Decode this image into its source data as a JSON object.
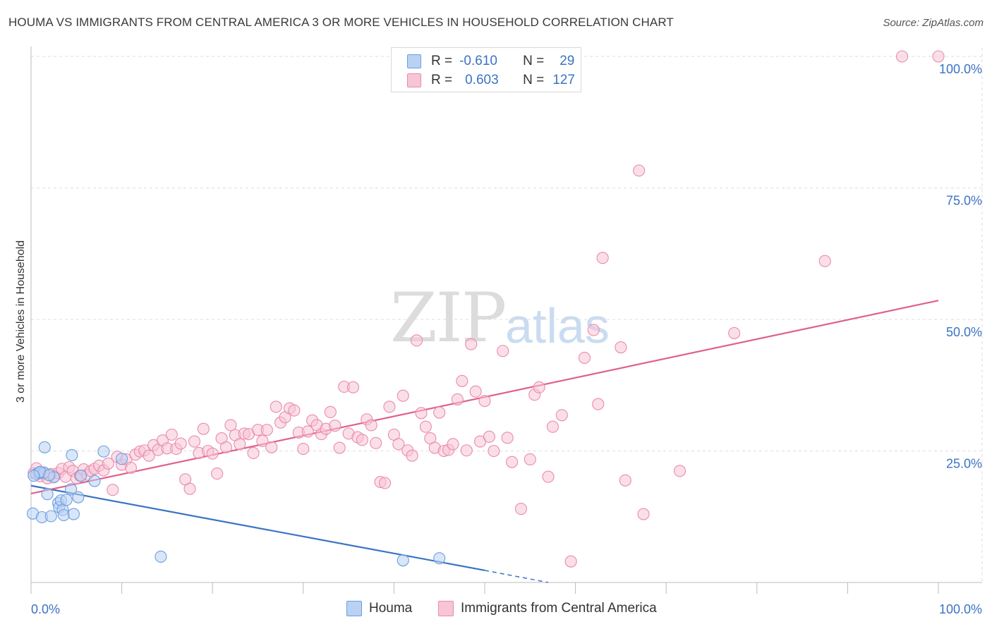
{
  "title": "HOUMA VS IMMIGRANTS FROM CENTRAL AMERICA 3 OR MORE VEHICLES IN HOUSEHOLD CORRELATION CHART",
  "source": "Source: ZipAtlas.com",
  "watermark": {
    "zip": "ZIP",
    "atlas": "atlas"
  },
  "colors": {
    "houma": "#6d9ee0",
    "houma_fill": "#b9d1f2",
    "central": "#e98bab",
    "central_fill": "#f7c5d6",
    "houma_line": "#3b73c4",
    "central_line": "#e0608e",
    "axis_text": "#3b73c4",
    "grid": "#dddddd"
  },
  "legend_top": [
    {
      "r_label": "R =",
      "r_value": "-0.610",
      "n_label": "N =",
      "n_value": "29"
    },
    {
      "r_label": "R =",
      "r_value": "0.603",
      "n_label": "N =",
      "n_value": "127"
    }
  ],
  "legend_bottom": [
    "Houma",
    "Immigrants from Central America"
  ],
  "chart_data": {
    "type": "scatter",
    "title": "HOUMA VS IMMIGRANTS FROM CENTRAL AMERICA 3 OR MORE VEHICLES IN HOUSEHOLD CORRELATION CHART",
    "xlabel": "",
    "ylabel": "3 or more Vehicles in Household",
    "xlim": [
      0,
      100
    ],
    "ylim": [
      0,
      100
    ],
    "x_tick_labels": [
      "0.0%",
      "100.0%"
    ],
    "y_tick_values": [
      25,
      50,
      75,
      100
    ],
    "y_tick_labels": [
      "25.0%",
      "50.0%",
      "75.0%",
      "100.0%"
    ],
    "grid": true,
    "series": [
      {
        "name": "Houma",
        "r": -0.61,
        "n": 29,
        "trend": {
          "x": [
            0,
            50
          ],
          "y": [
            18.4,
            2.3
          ],
          "dashed_to": [
            57,
            0
          ]
        },
        "points": [
          [
            0.2,
            13.1
          ],
          [
            0.6,
            20.6
          ],
          [
            0.9,
            20.8
          ],
          [
            1.2,
            12.4
          ],
          [
            1.4,
            20.9
          ],
          [
            1.5,
            25.7
          ],
          [
            1.8,
            16.8
          ],
          [
            2.2,
            12.6
          ],
          [
            2.5,
            20.0
          ],
          [
            3.0,
            15.1
          ],
          [
            3.1,
            14.3
          ],
          [
            3.3,
            15.6
          ],
          [
            3.5,
            13.8
          ],
          [
            3.6,
            12.8
          ],
          [
            3.9,
            15.7
          ],
          [
            4.4,
            17.7
          ],
          [
            4.5,
            24.2
          ],
          [
            4.7,
            13.0
          ],
          [
            5.2,
            16.2
          ],
          [
            5.5,
            20.3
          ],
          [
            7.0,
            19.3
          ],
          [
            8.0,
            24.9
          ],
          [
            10.0,
            23.5
          ],
          [
            14.3,
            4.9
          ],
          [
            41.0,
            4.2
          ],
          [
            45.0,
            4.6
          ],
          [
            1.0,
            21.0
          ],
          [
            2.0,
            20.4
          ],
          [
            0.3,
            20.3
          ]
        ]
      },
      {
        "name": "Immigrants from Central America",
        "r": 0.603,
        "n": 127,
        "trend": {
          "x": [
            0,
            100
          ],
          "y": [
            16.9,
            53.6
          ]
        },
        "points": [
          [
            0.3,
            20.8
          ],
          [
            0.6,
            21.7
          ],
          [
            1.0,
            20.2
          ],
          [
            1.4,
            20.7
          ],
          [
            1.8,
            19.8
          ],
          [
            2.2,
            20.6
          ],
          [
            2.6,
            20.2
          ],
          [
            3.0,
            20.8
          ],
          [
            3.4,
            21.6
          ],
          [
            3.8,
            20.1
          ],
          [
            4.2,
            21.9
          ],
          [
            4.6,
            21.2
          ],
          [
            5.0,
            19.8
          ],
          [
            5.4,
            20.3
          ],
          [
            5.8,
            21.5
          ],
          [
            6.2,
            20.5
          ],
          [
            6.6,
            21.2
          ],
          [
            7.0,
            21.6
          ],
          [
            7.5,
            22.2
          ],
          [
            8.0,
            21.3
          ],
          [
            8.5,
            22.6
          ],
          [
            9.0,
            17.6
          ],
          [
            9.5,
            23.9
          ],
          [
            10.0,
            22.4
          ],
          [
            10.5,
            23.4
          ],
          [
            11.0,
            21.8
          ],
          [
            11.5,
            24.3
          ],
          [
            12.0,
            24.9
          ],
          [
            12.5,
            25.1
          ],
          [
            13.0,
            24.1
          ],
          [
            13.5,
            26.1
          ],
          [
            14.0,
            25.2
          ],
          [
            14.5,
            27.0
          ],
          [
            15.0,
            25.5
          ],
          [
            15.5,
            28.1
          ],
          [
            16.0,
            25.4
          ],
          [
            16.5,
            26.4
          ],
          [
            17.0,
            19.6
          ],
          [
            17.5,
            17.8
          ],
          [
            18.0,
            26.8
          ],
          [
            18.5,
            24.6
          ],
          [
            19.0,
            29.2
          ],
          [
            19.5,
            25.0
          ],
          [
            20.0,
            24.5
          ],
          [
            20.5,
            20.7
          ],
          [
            21.0,
            27.4
          ],
          [
            21.5,
            25.7
          ],
          [
            22.0,
            29.9
          ],
          [
            22.5,
            28.0
          ],
          [
            23.0,
            26.3
          ],
          [
            23.5,
            28.3
          ],
          [
            24.0,
            28.2
          ],
          [
            24.5,
            24.6
          ],
          [
            25.0,
            29.0
          ],
          [
            25.5,
            26.9
          ],
          [
            26.0,
            29.0
          ],
          [
            26.5,
            25.7
          ],
          [
            27.0,
            33.4
          ],
          [
            27.5,
            30.4
          ],
          [
            28.0,
            31.4
          ],
          [
            28.5,
            33.1
          ],
          [
            29.0,
            32.7
          ],
          [
            29.5,
            28.5
          ],
          [
            30.0,
            25.4
          ],
          [
            30.5,
            28.7
          ],
          [
            31.0,
            30.8
          ],
          [
            31.5,
            29.9
          ],
          [
            32.0,
            28.2
          ],
          [
            32.5,
            29.2
          ],
          [
            33.0,
            32.4
          ],
          [
            33.5,
            29.8
          ],
          [
            34.0,
            25.6
          ],
          [
            34.5,
            37.2
          ],
          [
            35.0,
            28.3
          ],
          [
            35.5,
            37.1
          ],
          [
            36.0,
            27.6
          ],
          [
            36.5,
            27.1
          ],
          [
            37.0,
            31.0
          ],
          [
            37.5,
            29.9
          ],
          [
            38.0,
            26.5
          ],
          [
            38.5,
            19.1
          ],
          [
            39.0,
            18.9
          ],
          [
            39.5,
            33.4
          ],
          [
            40.0,
            28.1
          ],
          [
            40.5,
            26.3
          ],
          [
            41.0,
            35.5
          ],
          [
            41.5,
            25.1
          ],
          [
            42.0,
            24.1
          ],
          [
            42.5,
            46.0
          ],
          [
            43.0,
            32.2
          ],
          [
            43.5,
            29.6
          ],
          [
            44.0,
            27.4
          ],
          [
            44.5,
            25.6
          ],
          [
            45.0,
            32.3
          ],
          [
            45.5,
            25.0
          ],
          [
            46.0,
            25.2
          ],
          [
            46.5,
            26.3
          ],
          [
            47.0,
            34.8
          ],
          [
            47.5,
            38.3
          ],
          [
            48.0,
            25.1
          ],
          [
            48.5,
            45.3
          ],
          [
            49.0,
            36.3
          ],
          [
            49.5,
            26.8
          ],
          [
            50.0,
            34.5
          ],
          [
            50.5,
            27.7
          ],
          [
            51.0,
            25.0
          ],
          [
            52.0,
            44.0
          ],
          [
            52.5,
            27.5
          ],
          [
            53.0,
            22.9
          ],
          [
            54.0,
            14.0
          ],
          [
            55.0,
            23.4
          ],
          [
            55.5,
            35.7
          ],
          [
            56.0,
            37.1
          ],
          [
            57.0,
            20.1
          ],
          [
            57.5,
            29.6
          ],
          [
            58.5,
            31.8
          ],
          [
            59.5,
            4.0
          ],
          [
            61.0,
            42.7
          ],
          [
            62.0,
            48.0
          ],
          [
            62.5,
            33.9
          ],
          [
            63.0,
            61.7
          ],
          [
            65.0,
            44.7
          ],
          [
            65.5,
            19.4
          ],
          [
            67.0,
            78.3
          ],
          [
            67.5,
            13.0
          ],
          [
            71.5,
            21.2
          ],
          [
            77.5,
            47.4
          ],
          [
            87.5,
            61.1
          ],
          [
            96.0,
            100.0
          ],
          [
            100.0,
            100.0
          ]
        ]
      }
    ]
  }
}
